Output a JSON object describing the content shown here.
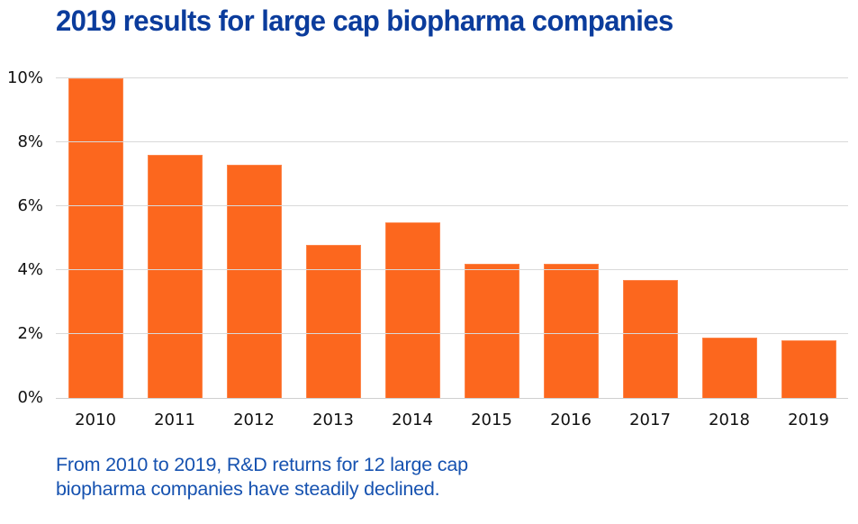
{
  "chart_data": {
    "type": "bar",
    "title": "2019 results for large cap biopharma companies",
    "categories": [
      "2010",
      "2011",
      "2012",
      "2013",
      "2014",
      "2015",
      "2016",
      "2017",
      "2018",
      "2019"
    ],
    "values": [
      10.0,
      7.6,
      7.3,
      4.8,
      5.5,
      4.2,
      4.2,
      3.7,
      1.9,
      1.8
    ],
    "xlabel": "",
    "ylabel": "",
    "ylim": [
      0,
      10
    ],
    "y_ticks": [
      0,
      2,
      4,
      6,
      8,
      10
    ],
    "y_tick_labels": [
      "0%",
      "2%",
      "4%",
      "6%",
      "8%",
      "10%"
    ],
    "grid": "horizontal",
    "legend": "none",
    "bar_color": "#fc671e"
  },
  "caption": {
    "line1": "From 2010 to 2019, R&D returns for 12 large cap",
    "line2": "biopharma companies have steadily declined."
  },
  "colors": {
    "title_blue": "#0b3c9c",
    "caption_blue": "#1652b0",
    "bar_orange": "#fc671e",
    "gridline_gray": "#d9d9d9",
    "axis_text": "#111111"
  }
}
